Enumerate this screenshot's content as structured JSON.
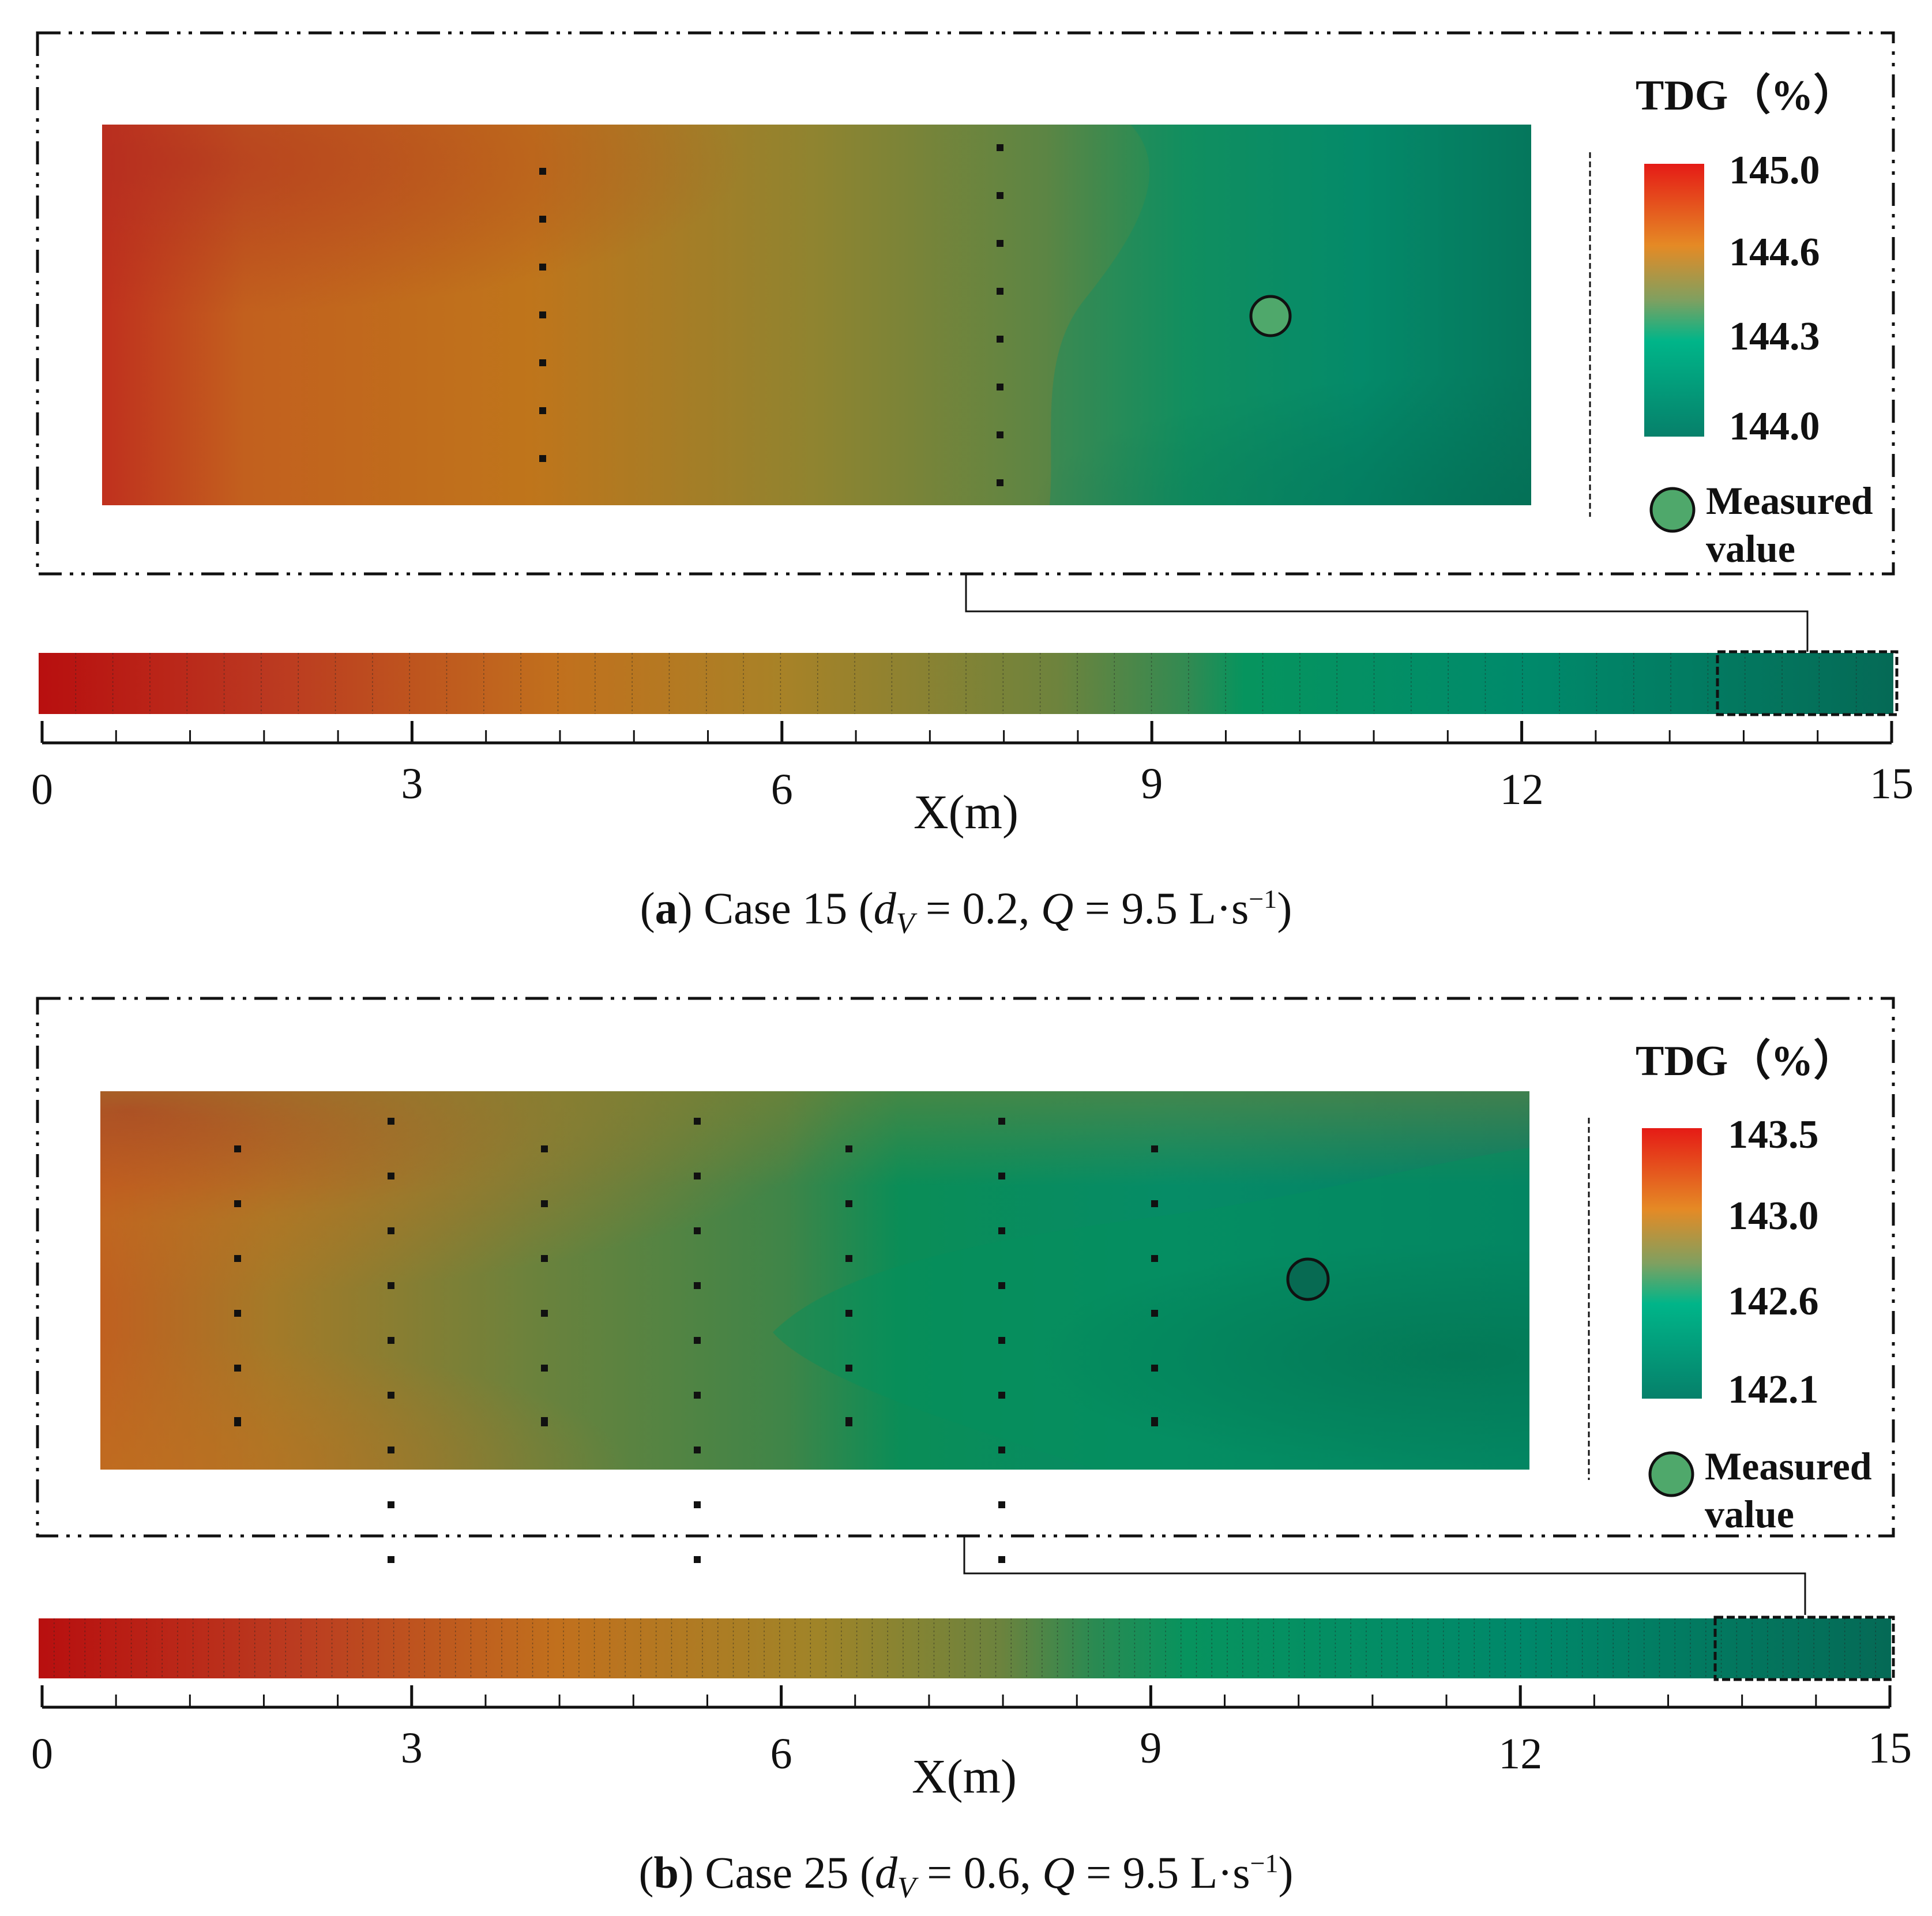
{
  "chart_data": [
    {
      "type": "heatmap",
      "panel": "a",
      "legend_title": "TDG（%）",
      "colorbar_ticks": [
        "145.0",
        "144.6",
        "144.3",
        "144.0"
      ],
      "colorbar_range": [
        144.0,
        145.0
      ],
      "measured_label_line1": "Measured",
      "measured_label_line2": "value",
      "xlabel": "X(m)",
      "xlim": [
        0,
        15
      ],
      "x_ticks": [
        "0",
        "3",
        "6",
        "9",
        "12",
        "15"
      ],
      "zoom_region_x": [
        13.6,
        15
      ],
      "measured_point": {
        "x": 14.4,
        "tdg_color": "#4fa86b"
      },
      "measurement_columns_x": [
        14.3,
        14.6
      ],
      "caption_letter": "a",
      "caption_case": "Case 15",
      "caption_dv": "0.2",
      "caption_q": "9.5",
      "caption_unit": "L·s",
      "caption_exp": "−1"
    },
    {
      "type": "heatmap",
      "panel": "b",
      "legend_title": "TDG（%）",
      "colorbar_ticks": [
        "143.5",
        "143.0",
        "142.6",
        "142.1"
      ],
      "colorbar_range": [
        142.1,
        143.5
      ],
      "measured_label_line1": "Measured",
      "measured_label_line2": "value",
      "xlabel": "X(m)",
      "xlim": [
        0,
        15
      ],
      "x_ticks": [
        "0",
        "3",
        "6",
        "9",
        "12",
        "15"
      ],
      "zoom_region_x": [
        13.6,
        15
      ],
      "measured_point": {
        "x": 14.5,
        "tdg_color": "#076a52"
      },
      "measurement_columns_x": [
        13.75,
        13.85,
        13.95,
        14.05,
        14.15,
        14.25,
        14.35
      ],
      "caption_letter": "b",
      "caption_case": "Case 25",
      "caption_dv": "0.6",
      "caption_q": "9.5",
      "caption_unit": "L·s",
      "caption_exp": "−1"
    }
  ],
  "colors": {
    "red": "#c0221c",
    "orange": "#c8761c",
    "olive": "#7f8535",
    "green": "#06915e",
    "teal": "#00826a",
    "dark_teal": "#03644f",
    "colorbar_top": "#e51b16",
    "colorbar_mid": "#e58a25",
    "colorbar_green": "#00b589",
    "measured_legend": "#4fa86b"
  }
}
